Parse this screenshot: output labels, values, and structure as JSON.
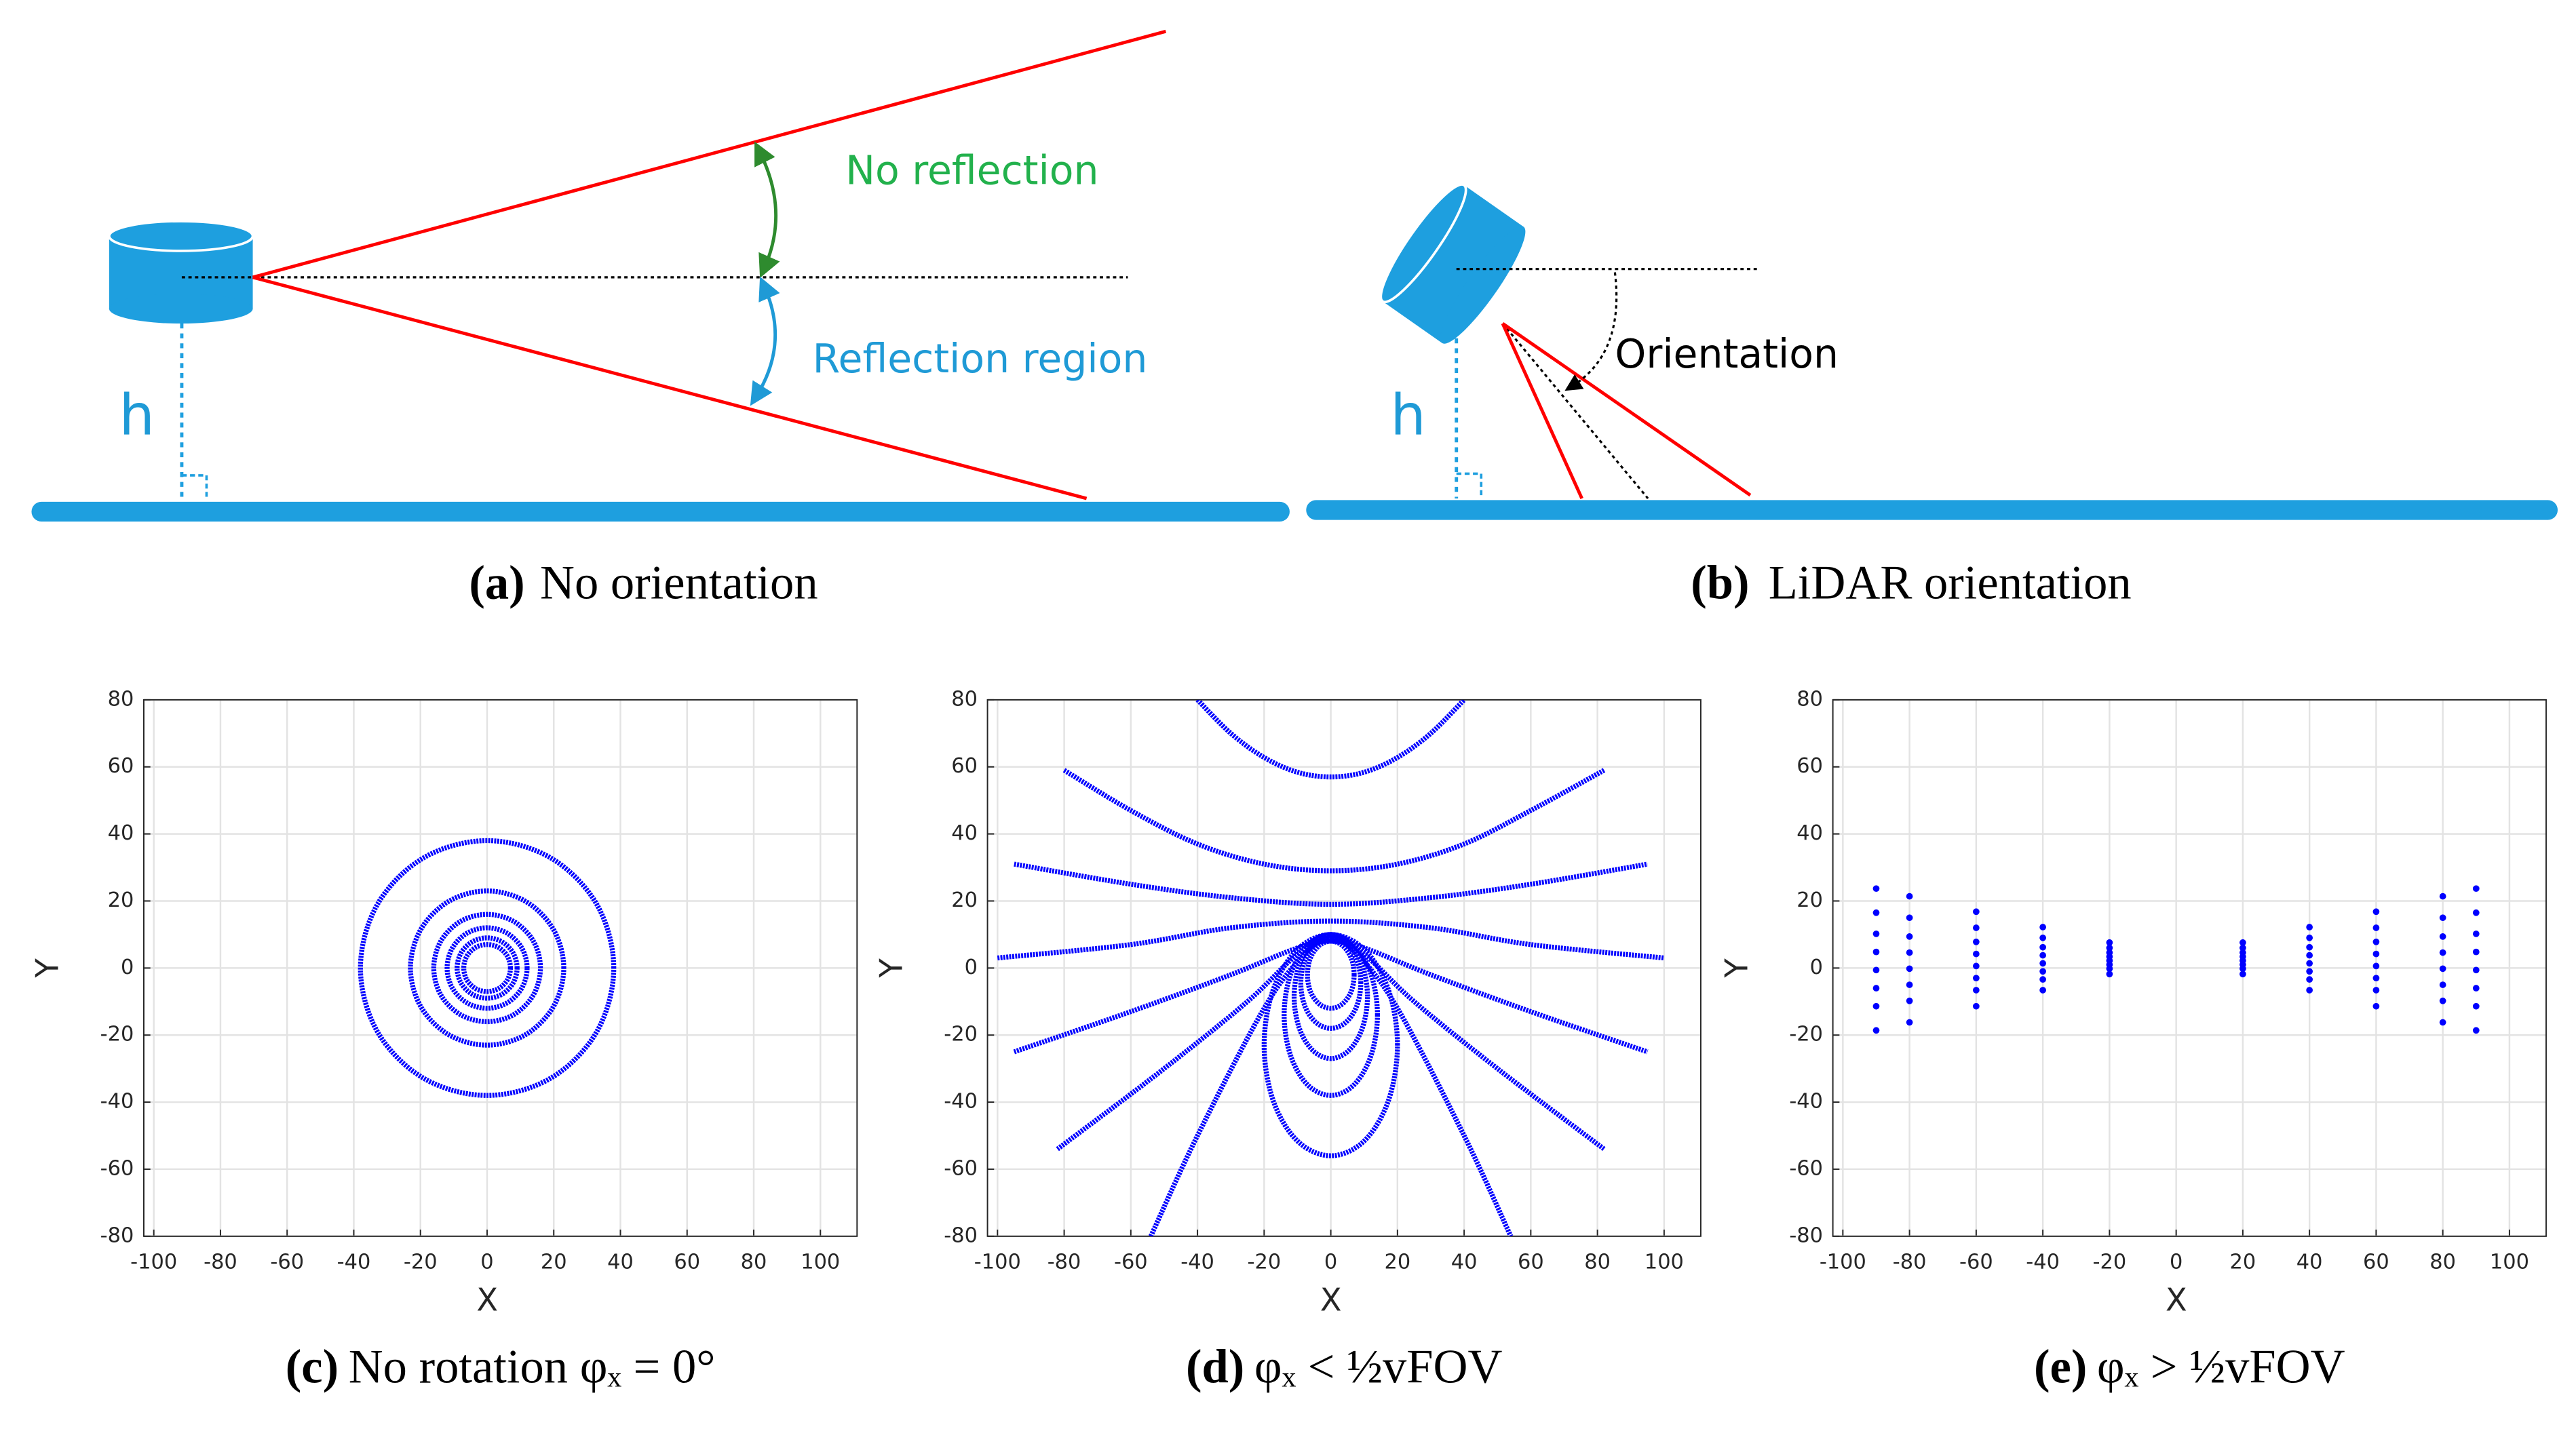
{
  "diagram_a": {
    "no_reflection": "No reflection",
    "reflection_region": "Reflection region",
    "height": "h",
    "caption_label": "(a)",
    "caption": "No orientation"
  },
  "diagram_b": {
    "height": "h",
    "orientation": "Orientation",
    "caption_label": "(b)",
    "caption": "LiDAR orientation"
  },
  "chart_data": [
    {
      "type": "line",
      "caption_label": "(c)",
      "caption": "No rotation φₓ = 0°",
      "xlabel": "X",
      "ylabel": "Y",
      "xlim": [
        -103,
        111
      ],
      "ylim": [
        -80,
        80
      ],
      "xticks": [
        -100,
        -80,
        -60,
        -40,
        -20,
        0,
        20,
        40,
        60,
        80,
        100
      ],
      "yticks": [
        -80,
        -60,
        -40,
        -20,
        0,
        20,
        40,
        60,
        80
      ],
      "grid": true,
      "series": [
        {
          "color": "#0000ff",
          "closed": true,
          "x": [
            38,
            32.9,
            19,
            0,
            -19,
            -32.9,
            -38,
            -32.9,
            -19,
            0,
            19,
            32.9
          ],
          "values": [
            0,
            19,
            32.9,
            38,
            32.9,
            19,
            0,
            -19,
            -32.9,
            -38,
            -32.9,
            -19
          ]
        },
        {
          "color": "#0000ff",
          "closed": true,
          "x": [
            23,
            19.9,
            11.5,
            0,
            -11.5,
            -19.9,
            -23,
            -19.9,
            -11.5,
            0,
            11.5,
            19.9
          ],
          "values": [
            0,
            11.5,
            19.9,
            23,
            19.9,
            11.5,
            0,
            -11.5,
            -19.9,
            -23,
            -19.9,
            -11.5
          ]
        },
        {
          "color": "#0000ff",
          "closed": true,
          "x": [
            16,
            13.9,
            8,
            0,
            -8,
            -13.9,
            -16,
            -13.9,
            -8,
            0,
            8,
            13.9
          ],
          "values": [
            0,
            8,
            13.9,
            16,
            13.9,
            8,
            0,
            -8,
            -13.9,
            -16,
            -13.9,
            -8
          ]
        },
        {
          "color": "#0000ff",
          "closed": true,
          "x": [
            12,
            10.4,
            6,
            0,
            -6,
            -10.4,
            -12,
            -10.4,
            -6,
            0,
            6,
            10.4
          ],
          "values": [
            0,
            6,
            10.4,
            12,
            10.4,
            6,
            0,
            -6,
            -10.4,
            -12,
            -10.4,
            -6
          ]
        },
        {
          "color": "#0000ff",
          "closed": true,
          "x": [
            9,
            7.8,
            4.5,
            0,
            -4.5,
            -7.8,
            -9,
            -7.8,
            -4.5,
            0,
            4.5,
            7.8
          ],
          "values": [
            0,
            4.5,
            7.8,
            9,
            7.8,
            4.5,
            0,
            -4.5,
            -7.8,
            -9,
            -7.8,
            -4.5
          ]
        },
        {
          "color": "#0000ff",
          "closed": true,
          "x": [
            7,
            6.1,
            3.5,
            0,
            -3.5,
            -6.1,
            -7,
            -6.1,
            -3.5,
            0,
            3.5,
            6.1
          ],
          "values": [
            0,
            3.5,
            6.1,
            7,
            6.1,
            3.5,
            0,
            -3.5,
            -6.1,
            -7,
            -6.1,
            -3.5
          ]
        }
      ]
    },
    {
      "type": "line",
      "caption_label": "(d)",
      "caption": "φₓ < ½vFOV",
      "xlabel": "X",
      "ylabel": "Y",
      "xlim": [
        -103,
        111
      ],
      "ylim": [
        -80,
        80
      ],
      "xticks": [
        -100,
        -80,
        -60,
        -40,
        -20,
        0,
        20,
        40,
        60,
        80,
        100
      ],
      "yticks": [
        -80,
        -60,
        -40,
        -20,
        0,
        20,
        40,
        60,
        80
      ],
      "grid": true,
      "series": [
        {
          "color": "#0000ff",
          "x": [
            -40,
            -30,
            -20,
            -10,
            0,
            10,
            20,
            30,
            40
          ],
          "values": [
            80,
            70,
            62.8,
            58.4,
            57,
            58.4,
            62.8,
            70,
            80
          ]
        },
        {
          "color": "#0000ff",
          "x": [
            -80,
            -60,
            -40,
            -20,
            0,
            20,
            40,
            60,
            82
          ],
          "values": [
            59,
            47,
            37,
            31,
            29,
            31,
            37,
            47,
            59
          ]
        },
        {
          "color": "#0000ff",
          "x": [
            -95,
            -60,
            -30,
            0,
            30,
            60,
            95
          ],
          "values": [
            31,
            25,
            21,
            19,
            21,
            25,
            31
          ]
        },
        {
          "color": "#0000ff",
          "x": [
            -100,
            -60,
            -30,
            0,
            30,
            60,
            100
          ],
          "values": [
            3,
            7,
            12,
            14,
            12,
            7,
            3
          ]
        },
        {
          "color": "#0000ff",
          "x": [
            -95,
            -60,
            -30,
            -10,
            0,
            10,
            30,
            60,
            95
          ],
          "values": [
            -25,
            -13,
            -2,
            6,
            8,
            6,
            -2,
            -13,
            -25
          ]
        },
        {
          "color": "#0000ff",
          "x": [
            -82,
            -50,
            -25,
            -10,
            0,
            10,
            25,
            50,
            82
          ],
          "values": [
            -54,
            -30,
            -10,
            4,
            8,
            4,
            -10,
            -30,
            -54
          ]
        },
        {
          "color": "#0000ff",
          "x": [
            -54,
            -40,
            -20,
            -8,
            0,
            8,
            20,
            40,
            54
          ],
          "values": [
            -80,
            -50,
            -12,
            4,
            9,
            4,
            -12,
            -50,
            -80
          ]
        },
        {
          "color": "#0000ff",
          "closed": true,
          "x": [
            20,
            17.3,
            10,
            0,
            -10,
            -17.3,
            -20,
            -17.3,
            -10,
            0,
            10,
            17.3
          ],
          "values": [
            -23,
            -6.5,
            5.6,
            10,
            5.6,
            -6.5,
            -23,
            -39.5,
            -51.6,
            -56,
            -51.6,
            -39.5
          ]
        },
        {
          "color": "#0000ff",
          "closed": true,
          "x": [
            14,
            12.1,
            7,
            0,
            -7,
            -12.1,
            -14,
            -12.1,
            -7,
            0,
            7,
            12.1
          ],
          "values": [
            -14,
            -2,
            6.8,
            10,
            6.8,
            -2,
            -14,
            -26,
            -34.8,
            -38,
            -34.8,
            -26
          ]
        },
        {
          "color": "#0000ff",
          "closed": true,
          "x": [
            11,
            9.5,
            5.5,
            0,
            -5.5,
            -9.5,
            -11,
            -9.5,
            -5.5,
            0,
            5.5,
            9.5
          ],
          "values": [
            -8.5,
            0.8,
            7.5,
            10,
            7.5,
            0.8,
            -8.5,
            -17.8,
            -24.5,
            -27,
            -24.5,
            -17.8
          ]
        },
        {
          "color": "#0000ff",
          "closed": true,
          "x": [
            9,
            7.8,
            4.5,
            0,
            -4.5,
            -7.8,
            -9,
            -7.8,
            -4.5,
            0,
            4.5,
            7.8
          ],
          "values": [
            -4.5,
            2.3,
            7.2,
            9,
            7.2,
            2.3,
            -4.5,
            -11.3,
            -16.2,
            -18,
            -16.2,
            -11.3
          ]
        },
        {
          "color": "#0000ff",
          "closed": true,
          "x": [
            7,
            6.1,
            3.5,
            0,
            -3.5,
            -6.1,
            -7,
            -6.1,
            -3.5,
            0,
            3.5,
            6.1
          ],
          "values": [
            -2,
            3,
            6.7,
            8,
            6.7,
            3,
            -2,
            -7,
            -10.7,
            -12,
            -10.7,
            -7
          ]
        }
      ]
    },
    {
      "type": "scatter",
      "caption_label": "(e)",
      "caption": "φₓ > ½vFOV",
      "xlabel": "X",
      "ylabel": "Y",
      "xlim": [
        -103,
        111
      ],
      "ylim": [
        -80,
        80
      ],
      "xticks": [
        -100,
        -80,
        -60,
        -40,
        -20,
        0,
        20,
        40,
        60,
        80,
        100
      ],
      "yticks": [
        -80,
        -60,
        -40,
        -20,
        0,
        20,
        40,
        60,
        80
      ],
      "grid": true,
      "series": [
        {
          "color": "#0000ff",
          "x": [
            20,
            20,
            20,
            20,
            20,
            20,
            20,
            20,
            40,
            40,
            40,
            40,
            40,
            40,
            40,
            40,
            60,
            60,
            60,
            60,
            60,
            60,
            60,
            60,
            80,
            80,
            80,
            80,
            80,
            80,
            80,
            80,
            90,
            90,
            90,
            90,
            90,
            90,
            90,
            90,
            -20,
            -20,
            -20,
            -20,
            -20,
            -20,
            -20,
            -20,
            -40,
            -40,
            -40,
            -40,
            -40,
            -40,
            -40,
            -40,
            -60,
            -60,
            -60,
            -60,
            -60,
            -60,
            -60,
            -60,
            -80,
            -80,
            -80,
            -80,
            -80,
            -80,
            -80,
            -80,
            -90,
            -90,
            -90,
            -90,
            -90,
            -90,
            -90,
            -90
          ],
          "values": [
            7.6,
            6,
            4.6,
            3.4,
            2.2,
            1,
            -0.2,
            -1.8,
            12.2,
            9,
            6.2,
            3.8,
            1.4,
            -1,
            -3.4,
            -6.6,
            16.8,
            12,
            7.8,
            4.2,
            0.6,
            -3,
            -6.6,
            -11.4,
            21.4,
            15,
            9.4,
            4.6,
            -0.2,
            -5,
            -9.8,
            -16.2,
            23.7,
            16.5,
            10.2,
            4.8,
            -0.6,
            -6,
            -11.4,
            -18.6,
            7.6,
            6,
            4.6,
            3.4,
            2.2,
            1,
            -0.2,
            -1.8,
            12.2,
            9,
            6.2,
            3.8,
            1.4,
            -1,
            -3.4,
            -6.6,
            16.8,
            12,
            7.8,
            4.2,
            0.6,
            -3,
            -6.6,
            -11.4,
            21.4,
            15,
            9.4,
            4.6,
            -0.2,
            -5,
            -9.8,
            -16.2,
            23.7,
            16.5,
            10.2,
            4.8,
            -0.6,
            -6,
            -11.4,
            -18.6
          ]
        }
      ]
    }
  ]
}
